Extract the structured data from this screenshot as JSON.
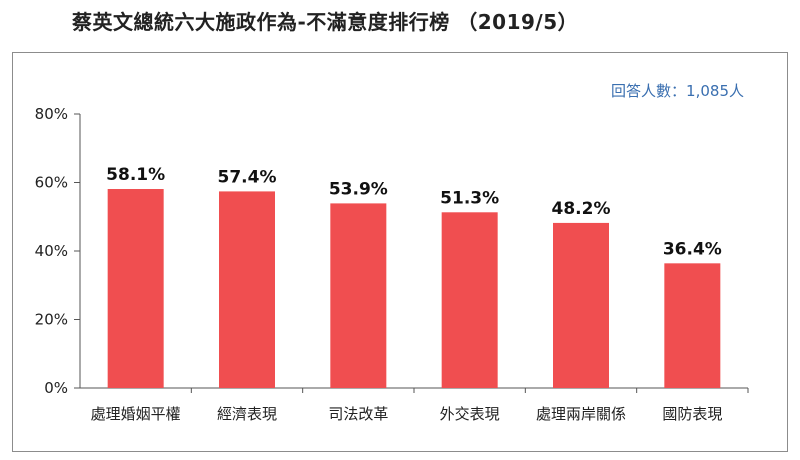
{
  "header": {
    "title": "蔡英文總統六大施政作為-不滿意度排行榜 （2019/5）"
  },
  "chart_data": {
    "type": "bar",
    "title": "蔡英文總統六大施政作為-不滿意度排行榜 （2019/5）",
    "annotation": "回答人數：1,085人",
    "categories": [
      "處理婚姻平權",
      "經濟表現",
      "司法改革",
      "外交表現",
      "處理兩岸關係",
      "國防表現"
    ],
    "values": [
      58.1,
      57.4,
      53.9,
      51.3,
      48.2,
      36.4
    ],
    "value_labels": [
      "58.1%",
      "57.4%",
      "53.9%",
      "51.3%",
      "48.2%",
      "36.4%"
    ],
    "ylim": [
      0,
      80
    ],
    "yticks": [
      0,
      20,
      40,
      60,
      80
    ],
    "ytick_labels": [
      "0%",
      "20%",
      "40%",
      "60%",
      "80%"
    ],
    "xlabel": "",
    "ylabel": "",
    "bar_color": "#f04e50",
    "grid": false,
    "legend": "none"
  }
}
